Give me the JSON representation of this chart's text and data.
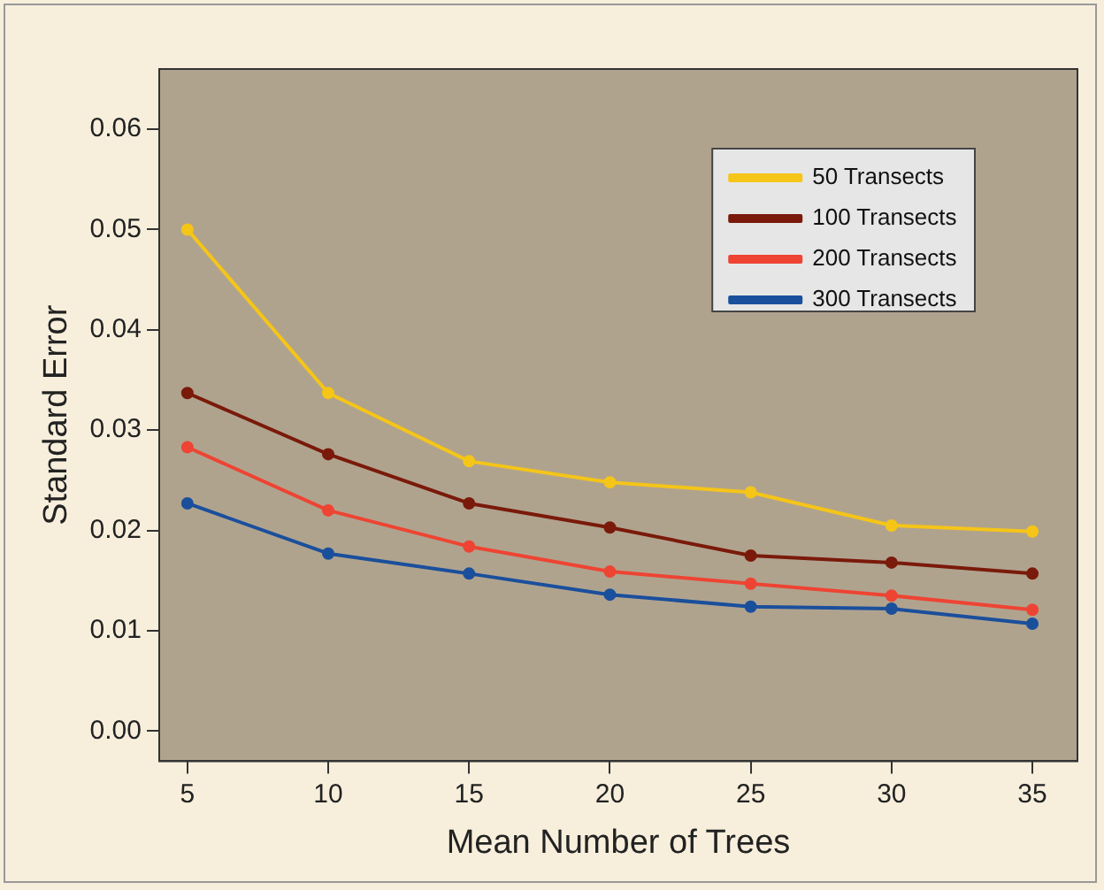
{
  "chart_data": {
    "type": "line",
    "xlabel": "Mean Number of Trees",
    "ylabel": "Standard Error",
    "x": [
      5,
      10,
      15,
      20,
      25,
      30,
      35
    ],
    "series": [
      {
        "name": "50 Transects",
        "color": "#f5c518",
        "values": [
          0.05,
          0.0337,
          0.0269,
          0.0248,
          0.0238,
          0.0205,
          0.0199
        ]
      },
      {
        "name": "100 Transects",
        "color": "#7a1a0a",
        "values": [
          0.0337,
          0.0276,
          0.0227,
          0.0203,
          0.0175,
          0.0168,
          0.0157
        ]
      },
      {
        "name": "200 Transects",
        "color": "#ee4433",
        "values": [
          0.0283,
          0.022,
          0.0184,
          0.0159,
          0.0147,
          0.0135,
          0.0121
        ]
      },
      {
        "name": "300 Transects",
        "color": "#1a4f9c",
        "values": [
          0.0227,
          0.0177,
          0.0157,
          0.0136,
          0.0124,
          0.0122,
          0.0107
        ]
      }
    ],
    "xlim": [
      4,
      36.6
    ],
    "xticks": [
      5,
      10,
      15,
      20,
      25,
      30,
      35
    ],
    "ylim": [
      -0.003,
      0.066
    ],
    "yticks": [
      {
        "value": 0,
        "label": "0.00"
      },
      {
        "value": 0.01,
        "label": "0.01"
      },
      {
        "value": 0.02,
        "label": "0.02"
      },
      {
        "value": 0.03,
        "label": "0.03"
      },
      {
        "value": 0.04,
        "label": "0.04"
      },
      {
        "value": 0.05,
        "label": "0.05"
      },
      {
        "value": 0.06,
        "label": "0.06"
      }
    ],
    "grid": false,
    "legend": "top right",
    "marker": "circle",
    "line_style": "solid"
  }
}
